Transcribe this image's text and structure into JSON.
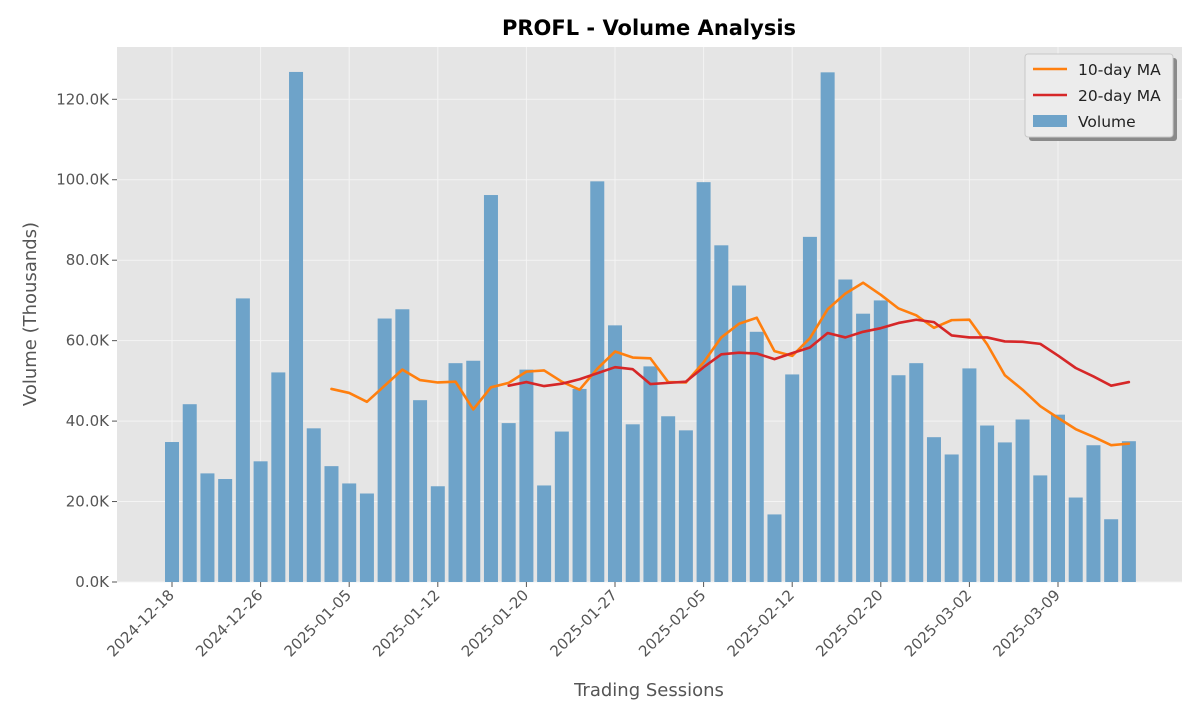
{
  "chart_data": {
    "type": "bar",
    "title": "PROFL - Volume Analysis",
    "xlabel": "Trading Sessions",
    "ylabel": "Volume (Thousands)",
    "ylim": [
      0,
      133000
    ],
    "yticks": [
      0,
      20000,
      40000,
      60000,
      80000,
      100000,
      120000
    ],
    "ytick_labels": [
      "0.0K",
      "20.0K",
      "40.0K",
      "60.0K",
      "80.0K",
      "100.0K",
      "120.0K"
    ],
    "xtick_labels": [
      "2024-12-18",
      "2024-12-26",
      "2025-01-05",
      "2025-01-12",
      "2025-01-20",
      "2025-01-27",
      "2025-02-05",
      "2025-02-12",
      "2025-02-20",
      "2025-03-02",
      "2025-03-09"
    ],
    "xtick_index": [
      0,
      5,
      10,
      15,
      20,
      25,
      30,
      35,
      40,
      45,
      50
    ],
    "grid": true,
    "legend_position": "top-right",
    "colors": {
      "volume": "#6ea3c9",
      "ma10": "#ff7f0e",
      "ma20": "#d62728",
      "plot_bg": "#e5e5e5",
      "grid": "#f4f4f4"
    },
    "series": [
      {
        "name": "Volume",
        "kind": "bar",
        "values": [
          34800,
          44200,
          27000,
          25600,
          70500,
          30000,
          52100,
          126800,
          38200,
          28800,
          24500,
          22000,
          65500,
          67800,
          45200,
          23800,
          54400,
          55000,
          96200,
          39500,
          52800,
          24000,
          37400,
          48000,
          99600,
          63800,
          39200,
          53600,
          41200,
          37700,
          99400,
          83700,
          73700,
          62200,
          16800,
          51600,
          85800,
          126700,
          75200,
          66700,
          70000,
          51400,
          54400,
          36000,
          31700,
          53100,
          38900,
          34700,
          40400,
          26500,
          41600,
          21000,
          34000,
          15600,
          35000
        ]
      },
      {
        "name": "10-day MA",
        "kind": "line",
        "values": [
          null,
          null,
          null,
          null,
          null,
          null,
          null,
          null,
          null,
          48000,
          47000,
          44800,
          48800,
          52800,
          50200,
          49600,
          49800,
          42900,
          48400,
          49500,
          52300,
          52600,
          49800,
          47800,
          53000,
          57300,
          55800,
          55600,
          49700,
          49600,
          54600,
          60800,
          64200,
          65700,
          57400,
          56200,
          60600,
          67800,
          71700,
          74400,
          71400,
          68000,
          66300,
          63200,
          65100,
          65200,
          59100,
          51400,
          47800,
          43700,
          40800,
          38000,
          36100,
          34000,
          34400
        ]
      },
      {
        "name": "20-day MA",
        "kind": "line",
        "values": [
          null,
          null,
          null,
          null,
          null,
          null,
          null,
          null,
          null,
          null,
          null,
          null,
          null,
          null,
          null,
          null,
          null,
          null,
          null,
          48800,
          49700,
          48700,
          49300,
          50400,
          51900,
          53400,
          52900,
          49200,
          49500,
          49800,
          53400,
          56600,
          57000,
          56800,
          55400,
          56900,
          58300,
          61900,
          60800,
          62200,
          63100,
          64400,
          65200,
          64600,
          61300,
          60800,
          60800,
          59800,
          59700,
          59200,
          56300,
          53200,
          51100,
          48800,
          49700
        ]
      }
    ]
  }
}
